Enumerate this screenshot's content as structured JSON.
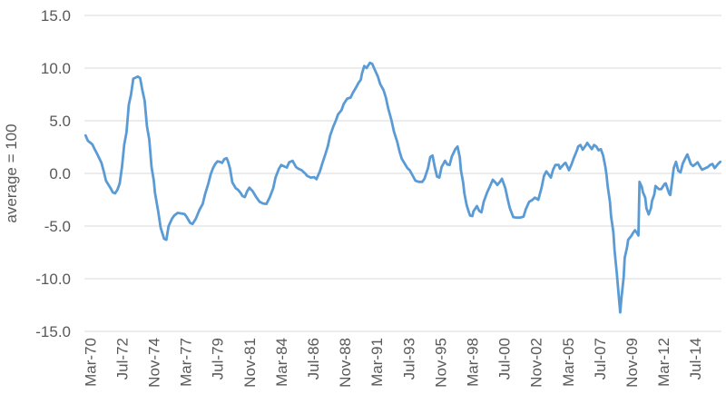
{
  "chart": {
    "y_axis_title": "average = 100"
  },
  "chart_data": {
    "type": "line",
    "title": "",
    "xlabel": "",
    "ylabel": "average = 100",
    "ylim": [
      -15.0,
      15.0
    ],
    "y_ticks": [
      15,
      10,
      5,
      0,
      -5,
      -10,
      -15
    ],
    "y_tick_labels": [
      "15.0",
      "10.0",
      "5.0",
      "0.0",
      "-5.0",
      "-10.0",
      "-15.0"
    ],
    "x_unit": "months_since_Mar-1970",
    "x_range_months": [
      -5,
      555
    ],
    "x_tick_months": [
      0,
      28,
      56,
      84,
      112,
      140,
      168,
      196,
      224,
      252,
      280,
      308,
      336,
      364,
      392,
      420,
      448,
      476,
      504,
      532
    ],
    "x_tick_labels": [
      "Mar-70",
      "Jul-72",
      "Nov-74",
      "Mar-77",
      "Jul-79",
      "Nov-81",
      "Mar-84",
      "Jul-86",
      "Nov-88",
      "Mar-91",
      "Jul-93",
      "Nov-95",
      "Mar-98",
      "Jul-00",
      "Nov-02",
      "Mar-05",
      "Jul-07",
      "Nov-09",
      "Mar-12",
      "Jul-14"
    ],
    "grid": "horizontal",
    "legend": "none",
    "colors": {
      "line": "#5B9BD5",
      "grid": "#D9D9D9",
      "text": "#595959"
    },
    "series": [
      {
        "name": "",
        "color": "#5B9BD5",
        "points": [
          [
            -4,
            3.6
          ],
          [
            -2,
            3.1
          ],
          [
            2,
            2.75
          ],
          [
            4,
            2.3
          ],
          [
            6,
            1.9
          ],
          [
            10,
            1
          ],
          [
            12,
            0.2
          ],
          [
            14,
            -0.7
          ],
          [
            18,
            -1.4
          ],
          [
            20,
            -1.8
          ],
          [
            22,
            -1.9
          ],
          [
            24,
            -1.55
          ],
          [
            26,
            -0.95
          ],
          [
            28,
            0.6
          ],
          [
            30,
            2.75
          ],
          [
            32,
            3.9
          ],
          [
            34,
            6.5
          ],
          [
            36,
            7.5
          ],
          [
            38,
            9
          ],
          [
            41,
            9.15
          ],
          [
            42,
            9.2
          ],
          [
            44,
            9.05
          ],
          [
            46,
            7.9
          ],
          [
            48,
            6.9
          ],
          [
            50,
            4.5
          ],
          [
            52,
            3.2
          ],
          [
            54,
            0.6
          ],
          [
            56,
            -0.7
          ],
          [
            57,
            -1.8
          ],
          [
            60,
            -3.7
          ],
          [
            62,
            -5.15
          ],
          [
            65,
            -6.2
          ],
          [
            67,
            -6.3
          ],
          [
            69,
            -5
          ],
          [
            72,
            -4.3
          ],
          [
            74,
            -4
          ],
          [
            77,
            -3.75
          ],
          [
            80,
            -3.8
          ],
          [
            83,
            -3.85
          ],
          [
            85,
            -4.15
          ],
          [
            88,
            -4.7
          ],
          [
            90,
            -4.8
          ],
          [
            93,
            -4.3
          ],
          [
            96,
            -3.5
          ],
          [
            99,
            -2.9
          ],
          [
            101,
            -2
          ],
          [
            104,
            -0.95
          ],
          [
            106,
            -0.1
          ],
          [
            108,
            0.5
          ],
          [
            110,
            0.9
          ],
          [
            112,
            1.15
          ],
          [
            114,
            1.1
          ],
          [
            116,
            1
          ],
          [
            118,
            1.35
          ],
          [
            120,
            1.45
          ],
          [
            121,
            1.2
          ],
          [
            123,
            0.45
          ],
          [
            125,
            -0.85
          ],
          [
            128,
            -1.4
          ],
          [
            130,
            -1.55
          ],
          [
            132,
            -1.8
          ],
          [
            134,
            -2.15
          ],
          [
            136,
            -2.25
          ],
          [
            138,
            -1.7
          ],
          [
            140,
            -1.35
          ],
          [
            143,
            -1.7
          ],
          [
            146,
            -2.25
          ],
          [
            149,
            -2.7
          ],
          [
            152,
            -2.85
          ],
          [
            155,
            -2.9
          ],
          [
            158,
            -2.25
          ],
          [
            161,
            -1.4
          ],
          [
            163,
            -0.4
          ],
          [
            166,
            0.45
          ],
          [
            168,
            0.8
          ],
          [
            171,
            0.65
          ],
          [
            173,
            0.55
          ],
          [
            175,
            1.05
          ],
          [
            178,
            1.2
          ],
          [
            181,
            0.6
          ],
          [
            183,
            0.45
          ],
          [
            186,
            0.3
          ],
          [
            189,
            0
          ],
          [
            191,
            -0.25
          ],
          [
            194,
            -0.4
          ],
          [
            197,
            -0.35
          ],
          [
            199,
            -0.55
          ],
          [
            202,
            0.2
          ],
          [
            204,
            0.9
          ],
          [
            207,
            1.9
          ],
          [
            209,
            2.6
          ],
          [
            211,
            3.6
          ],
          [
            214,
            4.5
          ],
          [
            216,
            5
          ],
          [
            218,
            5.6
          ],
          [
            221,
            6
          ],
          [
            223,
            6.6
          ],
          [
            226,
            7.1
          ],
          [
            229,
            7.2
          ],
          [
            231,
            7.65
          ],
          [
            234,
            8.2
          ],
          [
            236,
            8.6
          ],
          [
            238,
            8.9
          ],
          [
            239,
            9.5
          ],
          [
            241,
            10.2
          ],
          [
            243,
            10
          ],
          [
            246,
            10.5
          ],
          [
            248,
            10.4
          ],
          [
            250,
            9.9
          ],
          [
            253,
            9.2
          ],
          [
            255,
            8.5
          ],
          [
            258,
            7.9
          ],
          [
            260,
            7.2
          ],
          [
            262,
            6.2
          ],
          [
            265,
            5
          ],
          [
            267,
            4
          ],
          [
            270,
            3
          ],
          [
            272,
            2.1
          ],
          [
            274,
            1.4
          ],
          [
            277,
            0.85
          ],
          [
            279,
            0.5
          ],
          [
            281,
            0.3
          ],
          [
            284,
            -0.3
          ],
          [
            286,
            -0.7
          ],
          [
            289,
            -0.8
          ],
          [
            292,
            -0.8
          ],
          [
            294,
            -0.5
          ],
          [
            297,
            0.5
          ],
          [
            299,
            1.55
          ],
          [
            301,
            1.7
          ],
          [
            303,
            0.6
          ],
          [
            305,
            -0.3
          ],
          [
            307,
            -0.4
          ],
          [
            309,
            0.6
          ],
          [
            312,
            1.2
          ],
          [
            314,
            0.85
          ],
          [
            316,
            0.8
          ],
          [
            318,
            1.6
          ],
          [
            321,
            2.3
          ],
          [
            323,
            2.55
          ],
          [
            325,
            1.5
          ],
          [
            326,
            0.3
          ],
          [
            328,
            -0.9
          ],
          [
            329,
            -1.9
          ],
          [
            331,
            -3
          ],
          [
            333,
            -3.7
          ],
          [
            334,
            -4
          ],
          [
            336,
            -4.05
          ],
          [
            337,
            -3.6
          ],
          [
            340,
            -3.1
          ],
          [
            342,
            -3.55
          ],
          [
            344,
            -3.7
          ],
          [
            346,
            -2.7
          ],
          [
            349,
            -1.8
          ],
          [
            352,
            -1.1
          ],
          [
            354,
            -0.6
          ],
          [
            357,
            -0.95
          ],
          [
            358,
            -1.1
          ],
          [
            361,
            -0.7
          ],
          [
            362,
            -0.5
          ],
          [
            365,
            -1.4
          ],
          [
            367,
            -2.4
          ],
          [
            369,
            -3.3
          ],
          [
            372,
            -4.15
          ],
          [
            375,
            -4.2
          ],
          [
            378,
            -4.2
          ],
          [
            381,
            -4.1
          ],
          [
            383,
            -3.4
          ],
          [
            386,
            -2.7
          ],
          [
            389,
            -2.5
          ],
          [
            391,
            -2.3
          ],
          [
            394,
            -2.5
          ],
          [
            397,
            -1.3
          ],
          [
            399,
            -0.25
          ],
          [
            401,
            0.2
          ],
          [
            405,
            -0.4
          ],
          [
            407,
            0.35
          ],
          [
            409,
            0.8
          ],
          [
            412,
            0.8
          ],
          [
            413,
            0.45
          ],
          [
            417,
            0.95
          ],
          [
            418,
            1
          ],
          [
            421,
            0.3
          ],
          [
            423,
            0.8
          ],
          [
            425,
            1.4
          ],
          [
            428,
            2.2
          ],
          [
            429,
            2.55
          ],
          [
            431,
            2.7
          ],
          [
            433,
            2.25
          ],
          [
            436,
            2.7
          ],
          [
            437,
            2.9
          ],
          [
            441,
            2.3
          ],
          [
            443,
            2.7
          ],
          [
            445,
            2.55
          ],
          [
            447,
            2.2
          ],
          [
            449,
            2.3
          ],
          [
            451,
            1.7
          ],
          [
            453,
            0.6
          ],
          [
            454,
            -0.2
          ],
          [
            455,
            -1.2
          ],
          [
            457,
            -2.7
          ],
          [
            458,
            -4.1
          ],
          [
            460,
            -5.6
          ],
          [
            461,
            -7.3
          ],
          [
            463,
            -9.5
          ],
          [
            465,
            -12
          ],
          [
            466,
            -13.2
          ],
          [
            467,
            -11.9
          ],
          [
            469,
            -9.9
          ],
          [
            470,
            -8
          ],
          [
            472,
            -7
          ],
          [
            473,
            -6.3
          ],
          [
            476,
            -5.9
          ],
          [
            477,
            -5.7
          ],
          [
            479,
            -5.4
          ],
          [
            481,
            -5.7
          ],
          [
            482,
            -5.9
          ],
          [
            483,
            -0.8
          ],
          [
            485,
            -1.3
          ],
          [
            486,
            -1.8
          ],
          [
            488,
            -2.3
          ],
          [
            489,
            -3.3
          ],
          [
            491,
            -3.9
          ],
          [
            493,
            -3.3
          ],
          [
            494,
            -2.6
          ],
          [
            496,
            -2
          ],
          [
            497,
            -1.2
          ],
          [
            500,
            -1.5
          ],
          [
            502,
            -1.5
          ],
          [
            505,
            -1
          ],
          [
            506,
            -0.95
          ],
          [
            509,
            -1.9
          ],
          [
            510,
            -2.05
          ],
          [
            513,
            0.5
          ],
          [
            515,
            1.1
          ],
          [
            517,
            0.25
          ],
          [
            519,
            0.1
          ],
          [
            521,
            0.95
          ],
          [
            524,
            1.6
          ],
          [
            525,
            1.8
          ],
          [
            528,
            0.9
          ],
          [
            530,
            0.7
          ],
          [
            533,
            0.95
          ],
          [
            534,
            1.05
          ],
          [
            537,
            0.5
          ],
          [
            538,
            0.35
          ],
          [
            541,
            0.5
          ],
          [
            543,
            0.6
          ],
          [
            545,
            0.8
          ],
          [
            547,
            0.9
          ],
          [
            549,
            0.5
          ],
          [
            552,
            0.9
          ],
          [
            554,
            1.1
          ]
        ]
      }
    ]
  }
}
